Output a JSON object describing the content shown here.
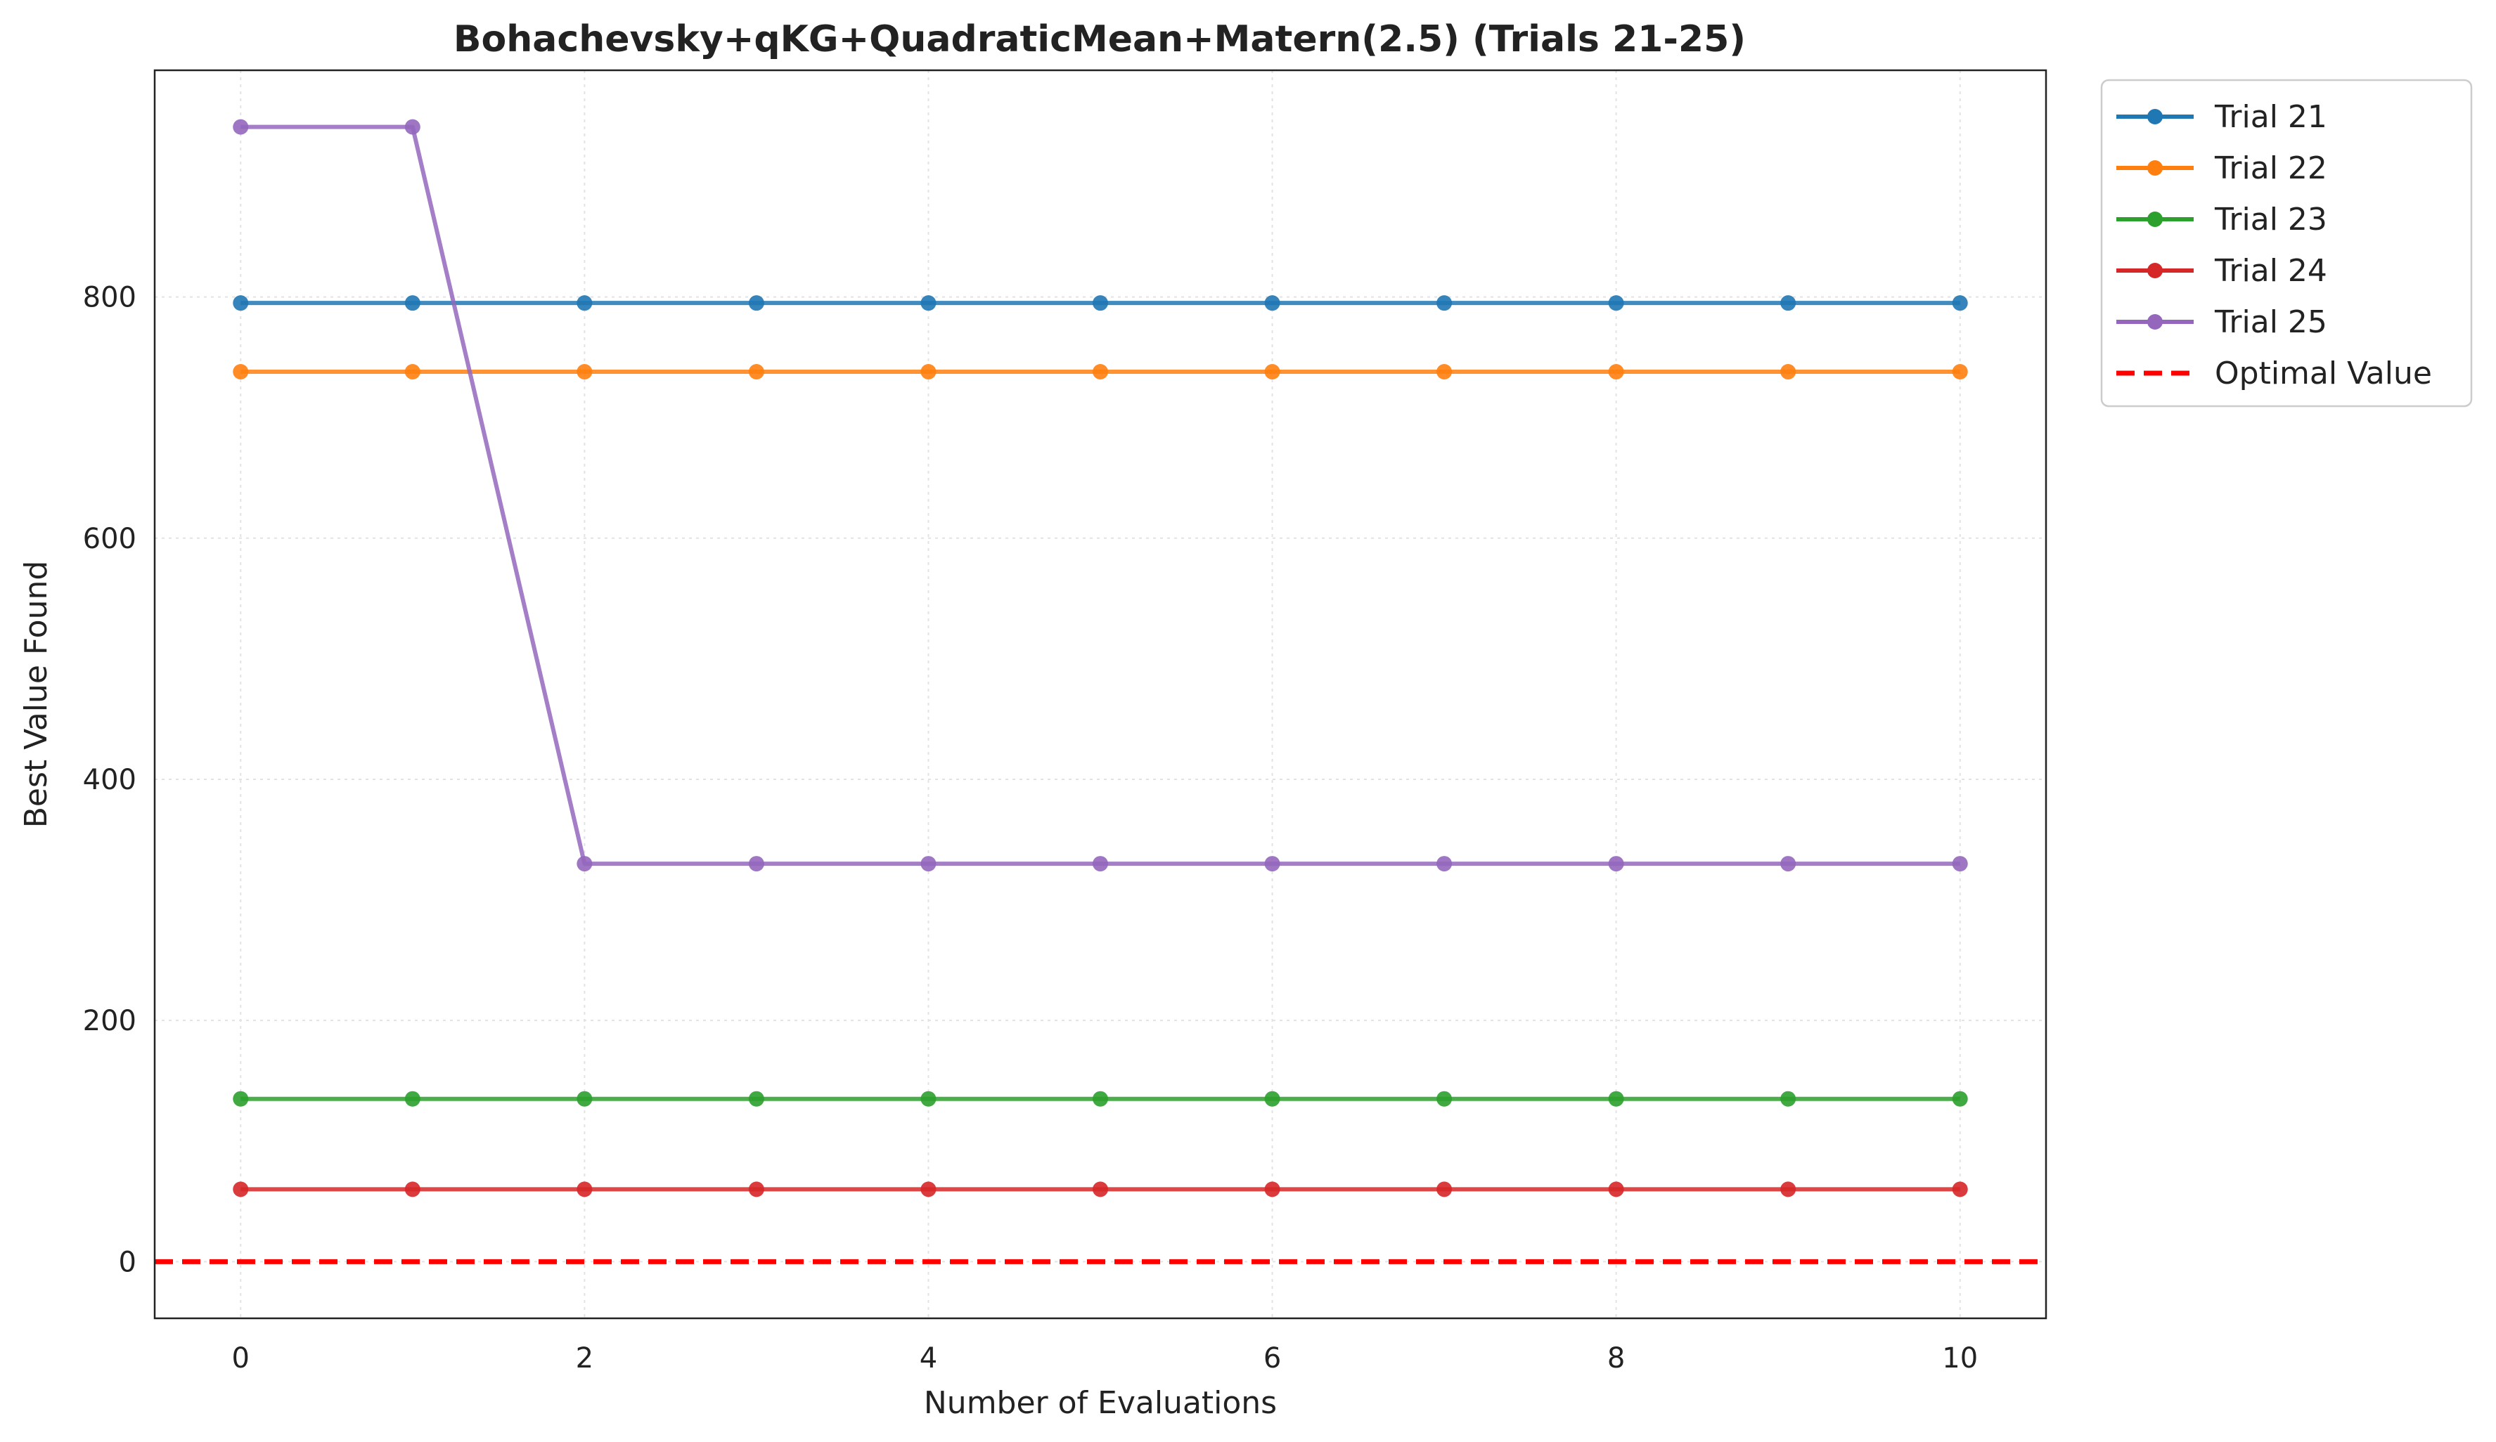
{
  "chart_data": {
    "type": "line",
    "title": "Bohachevsky+qKG+QuadraticMean+Matern(2.5) (Trials 21-25)",
    "xlabel": "Number of Evaluations",
    "ylabel": "Best Value Found",
    "xlim": [
      -0.5,
      10.5
    ],
    "ylim": [
      -47,
      988
    ],
    "xticks": [
      0,
      2,
      4,
      6,
      8,
      10
    ],
    "yticks": [
      0,
      200,
      400,
      600,
      800
    ],
    "grid": true,
    "legend_position": "outside-top-right",
    "x": [
      0,
      1,
      2,
      3,
      4,
      5,
      6,
      7,
      8,
      9,
      10
    ],
    "series": [
      {
        "name": "Trial 21",
        "color": "#1f77b4",
        "values": [
          795,
          795,
          795,
          795,
          795,
          795,
          795,
          795,
          795,
          795,
          795
        ]
      },
      {
        "name": "Trial 22",
        "color": "#ff7f0e",
        "values": [
          738,
          738,
          738,
          738,
          738,
          738,
          738,
          738,
          738,
          738,
          738
        ]
      },
      {
        "name": "Trial 23",
        "color": "#2ca02c",
        "values": [
          135,
          135,
          135,
          135,
          135,
          135,
          135,
          135,
          135,
          135,
          135
        ]
      },
      {
        "name": "Trial 24",
        "color": "#d62728",
        "values": [
          60,
          60,
          60,
          60,
          60,
          60,
          60,
          60,
          60,
          60,
          60
        ]
      },
      {
        "name": "Trial 25",
        "color": "#9467bd",
        "values": [
          941,
          941,
          330,
          330,
          330,
          330,
          330,
          330,
          330,
          330,
          330
        ]
      }
    ],
    "reference_line": {
      "name": "Optimal Value",
      "value": 0,
      "color": "#ff0000",
      "style": "dashed"
    }
  }
}
